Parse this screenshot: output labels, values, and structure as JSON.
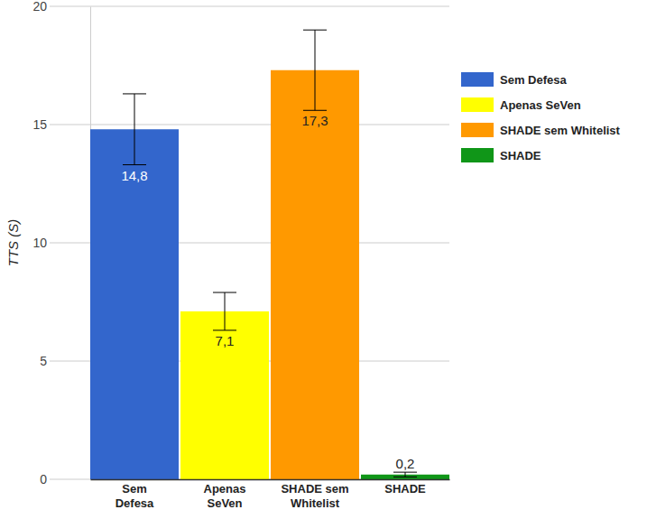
{
  "chart_data": {
    "type": "bar",
    "ylabel": "TTS (S)",
    "categories": [
      "Sem Defesa",
      "Apenas SeVen",
      "SHADE sem Whitelist",
      "SHADE"
    ],
    "values": [
      14.8,
      7.1,
      17.3,
      0.2
    ],
    "value_labels": [
      "14,8",
      "7,1",
      "17,3",
      "0,2"
    ],
    "errors": [
      1.5,
      0.8,
      1.7,
      0.1
    ],
    "colors": [
      "#3366cc",
      "#ffff00",
      "#ff9900",
      "#109618"
    ],
    "ylim": [
      0,
      20
    ],
    "yticks": [
      0,
      5,
      10,
      15,
      20
    ],
    "grid": true,
    "legend": "right",
    "data_labels": true
  }
}
